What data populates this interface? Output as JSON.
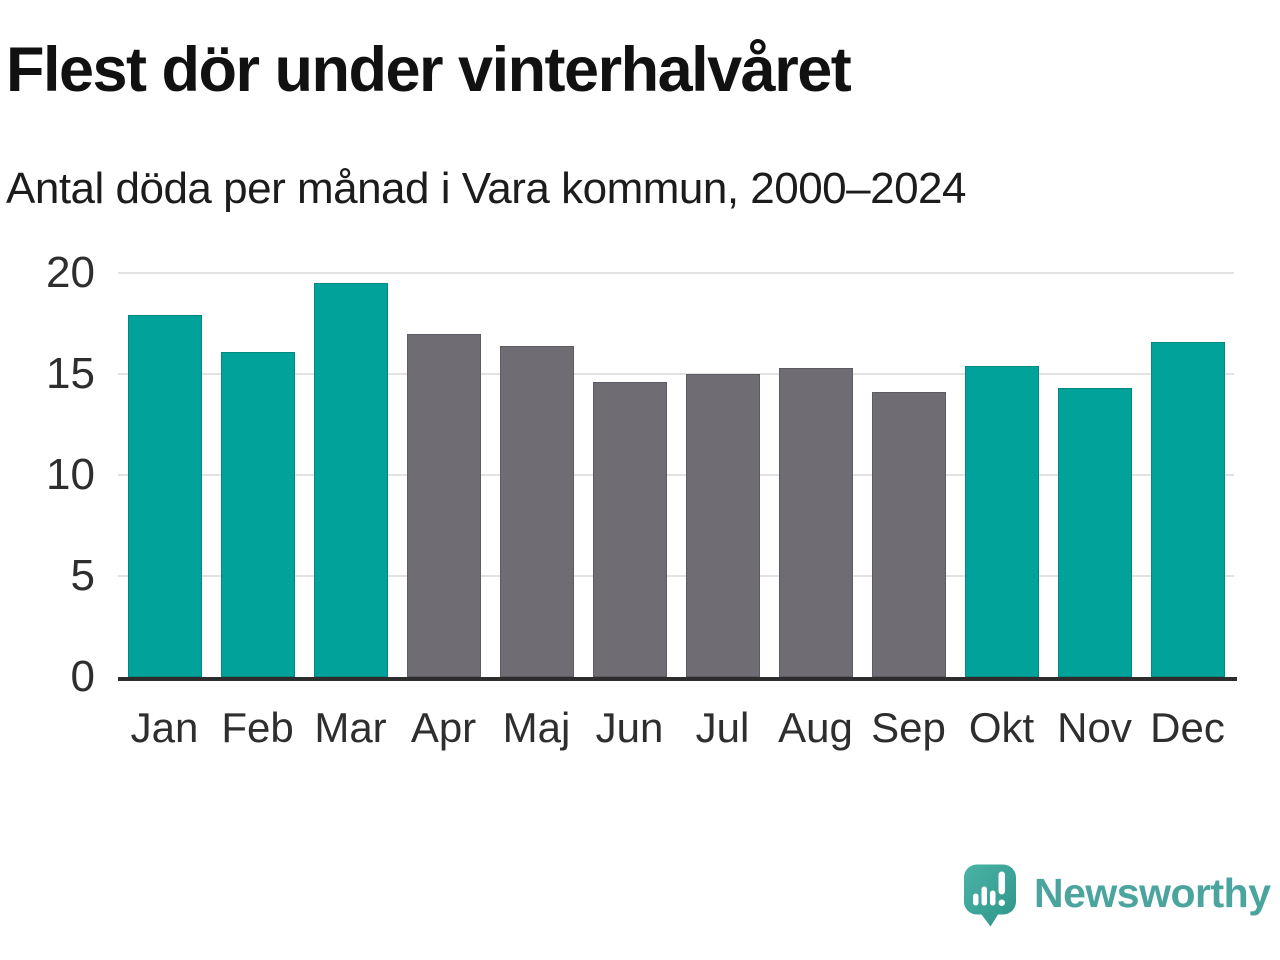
{
  "title": "Flest dör under vinterhalvåret",
  "subtitle": "Antal döda per månad i Vara kommun, 2000–2024",
  "colors": {
    "teal": "#00a29a",
    "gray": "#6f6c74",
    "grid": "#e2e2e2",
    "axis": "#2d2d2d",
    "label": "#2e2e2e",
    "logo": "#4ba59e"
  },
  "chart_data": {
    "type": "bar",
    "categories": [
      "Jan",
      "Feb",
      "Mar",
      "Apr",
      "Maj",
      "Jun",
      "Jul",
      "Aug",
      "Sep",
      "Okt",
      "Nov",
      "Dec"
    ],
    "values": [
      17.9,
      16.1,
      19.5,
      17.0,
      16.4,
      14.6,
      15.0,
      15.3,
      14.1,
      15.4,
      14.3,
      16.6
    ],
    "bar_colors": [
      "teal",
      "teal",
      "teal",
      "gray",
      "gray",
      "gray",
      "gray",
      "gray",
      "gray",
      "teal",
      "teal",
      "teal"
    ],
    "title": "Flest dör under vinterhalvåret",
    "subtitle": "Antal döda per månad i Vara kommun, 2000–2024",
    "xlabel": "",
    "ylabel": "",
    "ylim": [
      0,
      20
    ],
    "y_ticks": [
      0,
      5,
      10,
      15,
      20
    ],
    "grid": "horizontal-only",
    "legend": "none",
    "color_meaning": "teal = winter half-year months, gray = summer half-year months"
  },
  "branding": {
    "logo_text": "Newsworthy",
    "logo_icon": "newsworthy-speech-bubble-bar-chart-icon"
  }
}
